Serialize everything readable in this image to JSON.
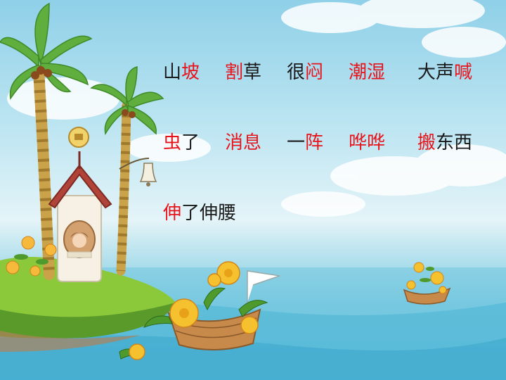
{
  "colors": {
    "key": "#e8141c",
    "normal": "#1a1a1a"
  },
  "rows": [
    [
      [
        {
          "t": "山",
          "c": "normal"
        },
        {
          "t": "坡",
          "c": "key"
        }
      ],
      [
        {
          "t": "割",
          "c": "key"
        },
        {
          "t": "草",
          "c": "normal"
        }
      ],
      [
        {
          "t": "很",
          "c": "normal"
        },
        {
          "t": "闷",
          "c": "key"
        }
      ],
      [
        {
          "t": "潮湿",
          "c": "key"
        }
      ],
      [
        {
          "t": "大声",
          "c": "normal"
        },
        {
          "t": "喊",
          "c": "key"
        }
      ]
    ],
    [
      [
        {
          "t": "虫",
          "c": "key"
        },
        {
          "t": "了",
          "c": "normal"
        }
      ],
      [
        {
          "t": "消息",
          "c": "key"
        }
      ],
      [
        {
          "t": "一",
          "c": "normal"
        },
        {
          "t": "阵",
          "c": "key"
        }
      ],
      [
        {
          "t": "哗哗",
          "c": "key"
        }
      ],
      [
        {
          "t": "搬",
          "c": "key"
        },
        {
          "t": "东西",
          "c": "normal"
        }
      ]
    ],
    [
      [
        {
          "t": "伸",
          "c": "key"
        },
        {
          "t": "了伸腰",
          "c": "normal"
        }
      ]
    ]
  ],
  "icons": [
    "palm-tree-icon",
    "cottage-icon",
    "bell-icon",
    "sign-icon",
    "flower-icon",
    "boat-icon",
    "island-icon",
    "cloud-icon"
  ]
}
